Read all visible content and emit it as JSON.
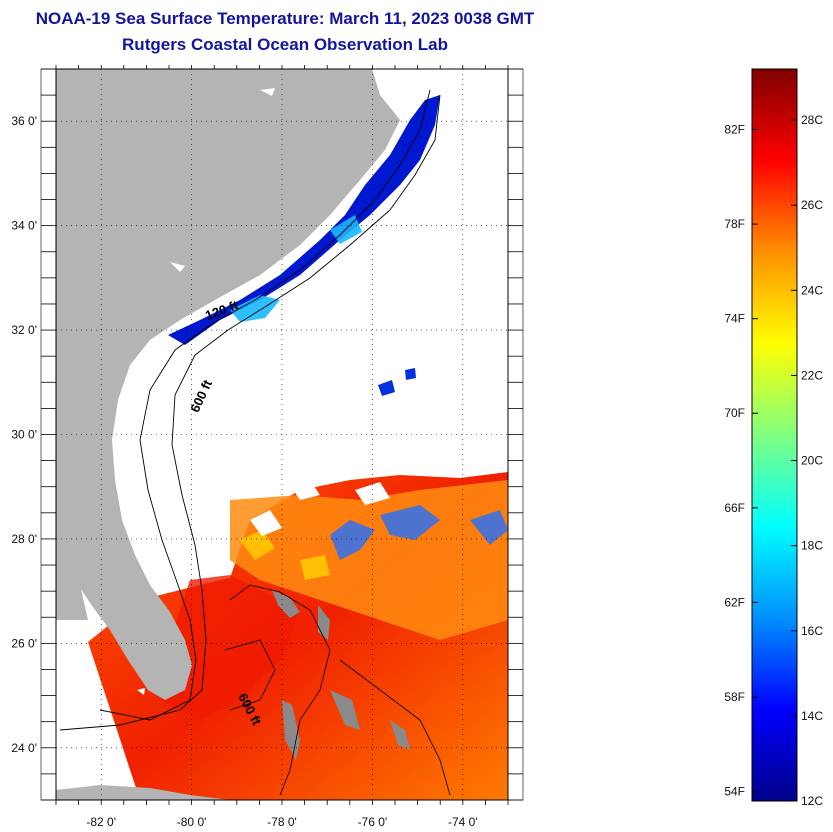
{
  "title": "NOAA-19 Sea Surface Temperature:  March 11, 2023 0038 GMT",
  "subtitle": "Rutgers Coastal Ocean Observation Lab",
  "map": {
    "lon_range": [
      -83,
      -73
    ],
    "lat_range": [
      23,
      37
    ],
    "lon_ticks": [
      {
        "value": -82,
        "label": "-82 0'"
      },
      {
        "value": -80,
        "label": "-80 0'"
      },
      {
        "value": -78,
        "label": "-78 0'"
      },
      {
        "value": -76,
        "label": "-76 0'"
      },
      {
        "value": -74,
        "label": "-74 0'"
      }
    ],
    "lat_ticks": [
      {
        "value": 24,
        "label": "24 0'"
      },
      {
        "value": 26,
        "label": "26 0'"
      },
      {
        "value": 28,
        "label": "28 0'"
      },
      {
        "value": 30,
        "label": "30 0'"
      },
      {
        "value": 32,
        "label": "32 0'"
      },
      {
        "value": 34,
        "label": "34 0'"
      },
      {
        "value": 36,
        "label": "36 0'"
      }
    ],
    "grid": "dotted",
    "land_color": "#b4b4b4",
    "isobaths": [
      {
        "label": "120 ft",
        "lon": -79.3,
        "lat": 32.3
      },
      {
        "label": "600 ft",
        "lon": -79.7,
        "lat": 30.7
      },
      {
        "label": "600 ft",
        "lon": -78.8,
        "lat": 24.7
      }
    ]
  },
  "colorbar": {
    "colors": [
      "#00008a",
      "#0000ff",
      "#0090ff",
      "#00ffff",
      "#80ff80",
      "#ffff00",
      "#ff9000",
      "#ff0000",
      "#800000"
    ],
    "fahrenheit_labels": [
      {
        "value": 54,
        "label": "54F"
      },
      {
        "value": 58,
        "label": "58F"
      },
      {
        "value": 62,
        "label": "62F"
      },
      {
        "value": 66,
        "label": "66F"
      },
      {
        "value": 70,
        "label": "70F"
      },
      {
        "value": 74,
        "label": "74F"
      },
      {
        "value": 78,
        "label": "78F"
      },
      {
        "value": 82,
        "label": "82F"
      }
    ],
    "celsius_labels": [
      {
        "value": 12,
        "label": "12C"
      },
      {
        "value": 14,
        "label": "14C"
      },
      {
        "value": 16,
        "label": "16C"
      },
      {
        "value": 18,
        "label": "18C"
      },
      {
        "value": 20,
        "label": "20C"
      },
      {
        "value": 22,
        "label": "22C"
      },
      {
        "value": 24,
        "label": "24C"
      },
      {
        "value": 26,
        "label": "26C"
      },
      {
        "value": 28,
        "label": "28C"
      }
    ],
    "celsius_range": [
      12,
      29.2
    ]
  }
}
